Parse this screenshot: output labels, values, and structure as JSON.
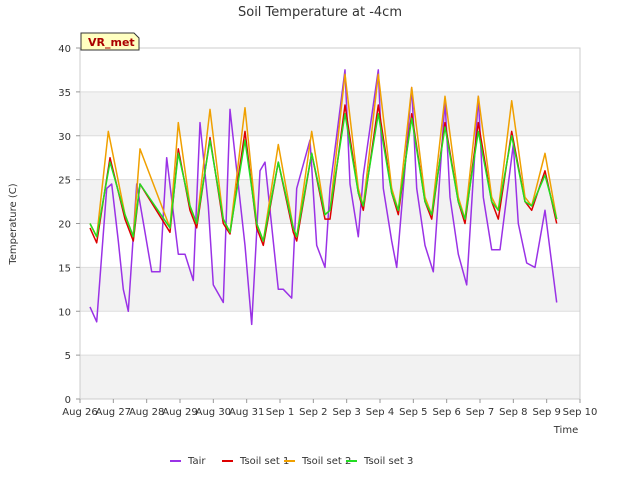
{
  "chart_data": {
    "type": "line",
    "title": "Soil Temperature at -4cm",
    "xlabel": "Time",
    "ylabel": "Temperature (C)",
    "station_badge": "VR_met",
    "ylim": [
      0,
      40
    ],
    "y_ticks": [
      0,
      5,
      10,
      15,
      20,
      25,
      30,
      35,
      40
    ],
    "x_range_days": [
      0,
      15
    ],
    "x_ticks": [
      "Aug 26",
      "Aug 27",
      "Aug 28",
      "Aug 29",
      "Aug 30",
      "Aug 31",
      "Sep 1",
      "Sep 2",
      "Sep 3",
      "Sep 4",
      "Sep 5",
      "Sep 6",
      "Sep 7",
      "Sep 8",
      "Sep 9",
      "Sep 10"
    ],
    "x_tick_days": [
      0,
      1,
      2,
      3,
      4,
      5,
      6,
      7,
      8,
      9,
      10,
      11,
      12,
      13,
      14,
      15
    ],
    "x_unit": "days since Aug 26 00:00",
    "grid": true,
    "legend_position": "bottom",
    "series": [
      {
        "name": "Tair",
        "color": "#9a32e6",
        "x": [
          0.3,
          0.5,
          0.8,
          0.95,
          1.15,
          1.3,
          1.45,
          1.7,
          1.95,
          2.15,
          2.4,
          2.6,
          2.95,
          3.15,
          3.4,
          3.6,
          3.85,
          4.0,
          4.3,
          4.5,
          4.95,
          5.15,
          5.4,
          5.55,
          5.95,
          6.1,
          6.35,
          6.5,
          6.9,
          7.1,
          7.35,
          7.5,
          7.95,
          8.1,
          8.35,
          8.5,
          8.95,
          9.1,
          9.35,
          9.5,
          9.95,
          10.1,
          10.35,
          10.6,
          10.95,
          11.1,
          11.35,
          11.6,
          11.95,
          12.1,
          12.35,
          12.6,
          13.0,
          13.15,
          13.4,
          13.65,
          13.95,
          14.1,
          14.3
        ],
        "y": [
          10.5,
          8.8,
          24.0,
          24.5,
          18.0,
          12.5,
          10.0,
          24.5,
          19.0,
          14.5,
          14.5,
          27.5,
          16.5,
          16.5,
          13.5,
          31.5,
          22.0,
          13.0,
          11.0,
          33.0,
          17.5,
          8.5,
          26.0,
          27.0,
          12.5,
          12.5,
          11.5,
          24.0,
          29.5,
          17.5,
          15.0,
          24.0,
          37.5,
          24.5,
          18.5,
          25.5,
          37.5,
          24.0,
          18.0,
          15.0,
          35.5,
          24.0,
          17.5,
          14.5,
          34.0,
          23.0,
          16.5,
          13.0,
          34.5,
          23.0,
          17.0,
          17.0,
          29.0,
          20.0,
          15.5,
          15.0,
          21.5,
          17.0,
          11.0
        ]
      },
      {
        "name": "Tsoil set 1",
        "color": "#dd0000",
        "x": [
          0.3,
          0.5,
          0.9,
          1.35,
          1.6,
          1.8,
          2.7,
          2.95,
          3.3,
          3.5,
          3.9,
          4.3,
          4.5,
          4.95,
          5.3,
          5.5,
          5.95,
          6.4,
          6.5,
          6.95,
          7.35,
          7.5,
          7.95,
          8.35,
          8.5,
          8.95,
          9.35,
          9.55,
          9.95,
          10.35,
          10.55,
          10.95,
          11.35,
          11.55,
          11.95,
          12.35,
          12.55,
          12.95,
          13.35,
          13.55,
          13.95,
          14.3
        ],
        "y": [
          19.5,
          17.8,
          27.5,
          20.5,
          18.0,
          24.5,
          19.0,
          28.5,
          21.5,
          19.5,
          29.8,
          20.0,
          18.8,
          30.5,
          19.5,
          17.5,
          27.0,
          19.0,
          18.0,
          28.0,
          20.5,
          20.5,
          33.5,
          23.5,
          21.5,
          33.5,
          23.5,
          21.0,
          32.5,
          22.5,
          20.5,
          31.5,
          22.5,
          20.0,
          31.5,
          22.5,
          20.5,
          30.5,
          22.5,
          21.5,
          26.0,
          20.0
        ]
      },
      {
        "name": "Tsoil set 2",
        "color": "#f0a000",
        "x": [
          0.3,
          0.5,
          0.85,
          1.35,
          1.6,
          1.8,
          2.7,
          2.95,
          3.3,
          3.5,
          3.9,
          4.3,
          4.5,
          4.95,
          5.3,
          5.5,
          5.95,
          6.4,
          6.5,
          6.95,
          7.35,
          7.5,
          7.95,
          8.35,
          8.5,
          8.95,
          9.35,
          9.55,
          9.95,
          10.35,
          10.55,
          10.95,
          11.35,
          11.55,
          11.95,
          12.35,
          12.55,
          12.95,
          13.35,
          13.55,
          13.95,
          14.3
        ],
        "y": [
          20.0,
          18.5,
          30.5,
          21.0,
          18.5,
          28.5,
          19.5,
          31.5,
          22.0,
          20.0,
          33.0,
          20.5,
          19.0,
          33.2,
          20.0,
          18.0,
          29.0,
          19.5,
          18.5,
          30.5,
          21.0,
          21.5,
          37.0,
          24.0,
          22.0,
          37.0,
          24.0,
          21.5,
          35.5,
          23.0,
          21.0,
          34.5,
          23.0,
          20.5,
          34.5,
          23.0,
          21.5,
          34.0,
          23.0,
          22.0,
          28.0,
          20.5
        ]
      },
      {
        "name": "Tsoil set 3",
        "color": "#22dd22",
        "x": [
          0.3,
          0.5,
          0.9,
          1.35,
          1.6,
          1.8,
          2.7,
          2.95,
          3.3,
          3.5,
          3.9,
          4.3,
          4.5,
          4.95,
          5.3,
          5.5,
          5.95,
          6.4,
          6.5,
          6.95,
          7.35,
          7.5,
          7.95,
          8.35,
          8.5,
          8.95,
          9.35,
          9.55,
          9.95,
          10.35,
          10.55,
          10.95,
          11.35,
          11.55,
          11.95,
          12.35,
          12.55,
          12.95,
          13.35,
          13.55,
          13.95,
          14.3
        ],
        "y": [
          20.0,
          18.5,
          27.0,
          21.0,
          18.5,
          24.5,
          19.5,
          28.0,
          22.0,
          20.0,
          29.5,
          20.5,
          19.0,
          29.5,
          20.0,
          18.0,
          27.0,
          19.5,
          18.5,
          28.0,
          21.0,
          21.5,
          32.5,
          23.5,
          22.0,
          32.5,
          23.5,
          21.5,
          32.0,
          22.5,
          21.0,
          31.0,
          22.5,
          20.5,
          30.5,
          22.5,
          21.5,
          30.0,
          22.5,
          22.0,
          25.5,
          20.5
        ]
      }
    ]
  }
}
